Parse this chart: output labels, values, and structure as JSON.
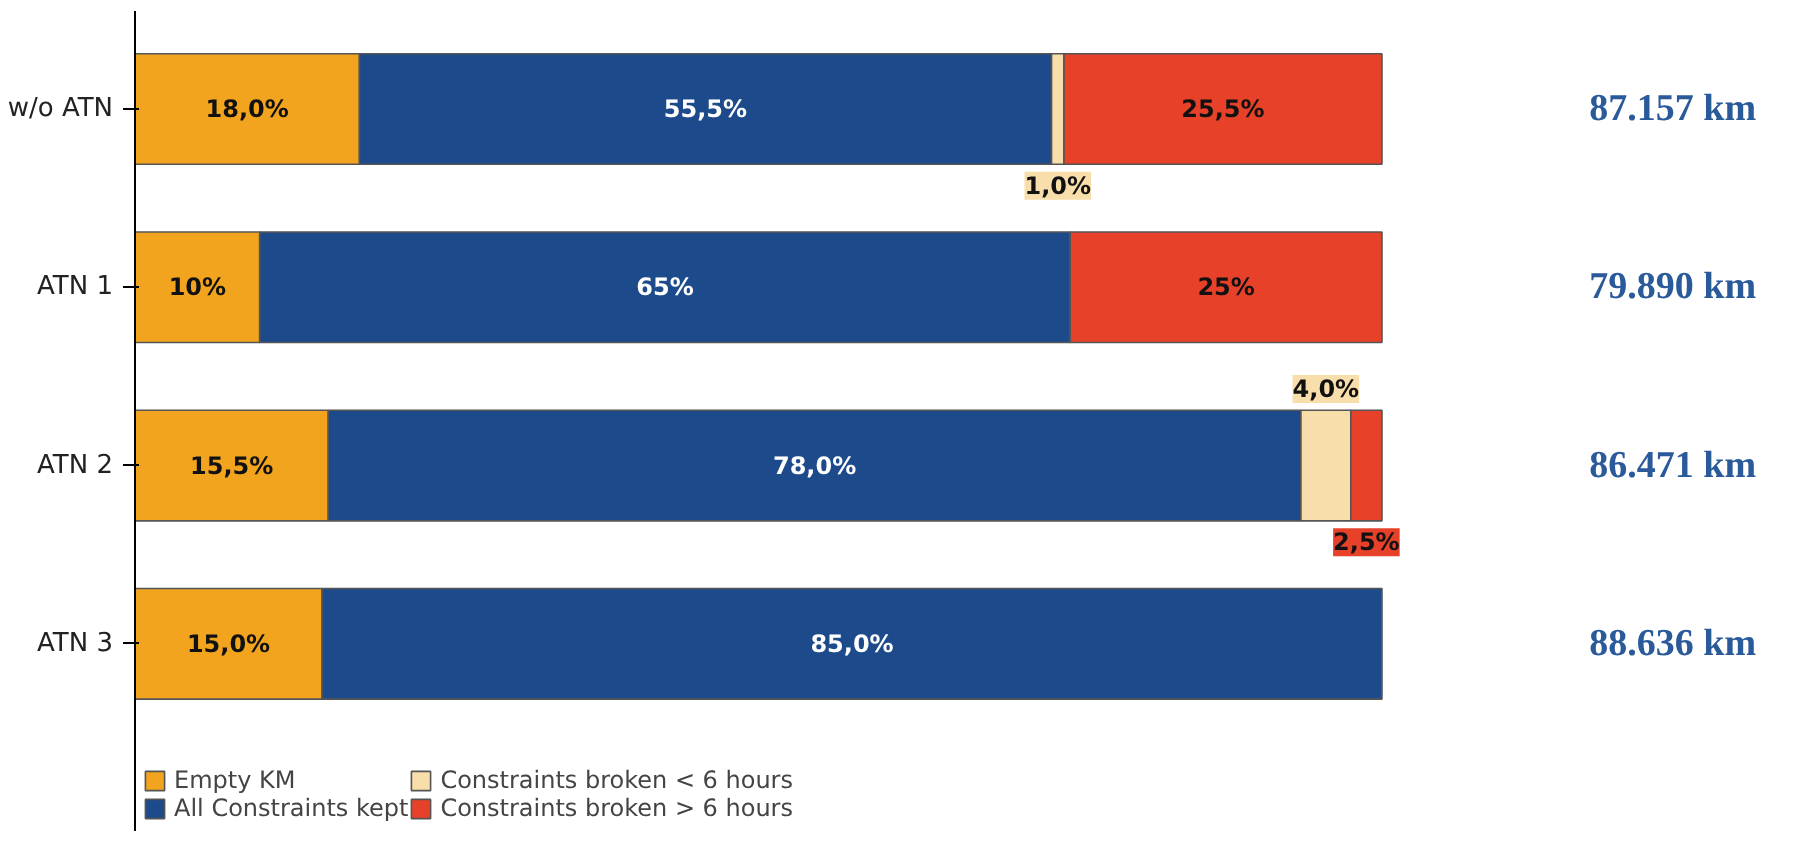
{
  "chart_data": {
    "type": "bar",
    "orientation": "horizontal",
    "stacked": true,
    "categories": [
      "w/o ATN",
      "ATN 1",
      "ATN 2",
      "ATN 3"
    ],
    "series": [
      {
        "name": "Empty KM",
        "color": "#f2a41e",
        "values": [
          18.0,
          10,
          15.5,
          15.0
        ],
        "value_labels": [
          "18,0%",
          "10%",
          "15,5%",
          "15,0%"
        ]
      },
      {
        "name": "All Constraints kept",
        "color": "#1c4a8a",
        "values": [
          55.5,
          65,
          78.0,
          85.0
        ],
        "value_labels": [
          "55,5%",
          "65%",
          "78,0%",
          "85,0%"
        ]
      },
      {
        "name": "Constraints broken < 6 hours",
        "color": "#f7deaa",
        "values": [
          1.0,
          0,
          4.0,
          0
        ],
        "value_labels": [
          "1,0%",
          null,
          "4,0%",
          null
        ]
      },
      {
        "name": "Constraints broken > 6 hours",
        "color": "#e8412a",
        "values": [
          25.5,
          25,
          2.5,
          0
        ],
        "value_labels": [
          "25,5%",
          "25%",
          "2,5%",
          null
        ]
      }
    ],
    "annotations": [
      "87.157 km",
      "79.890 km",
      "86.471 km",
      "88.636 km"
    ],
    "legend": "bottom",
    "grid": false,
    "tick_labels": "y"
  }
}
